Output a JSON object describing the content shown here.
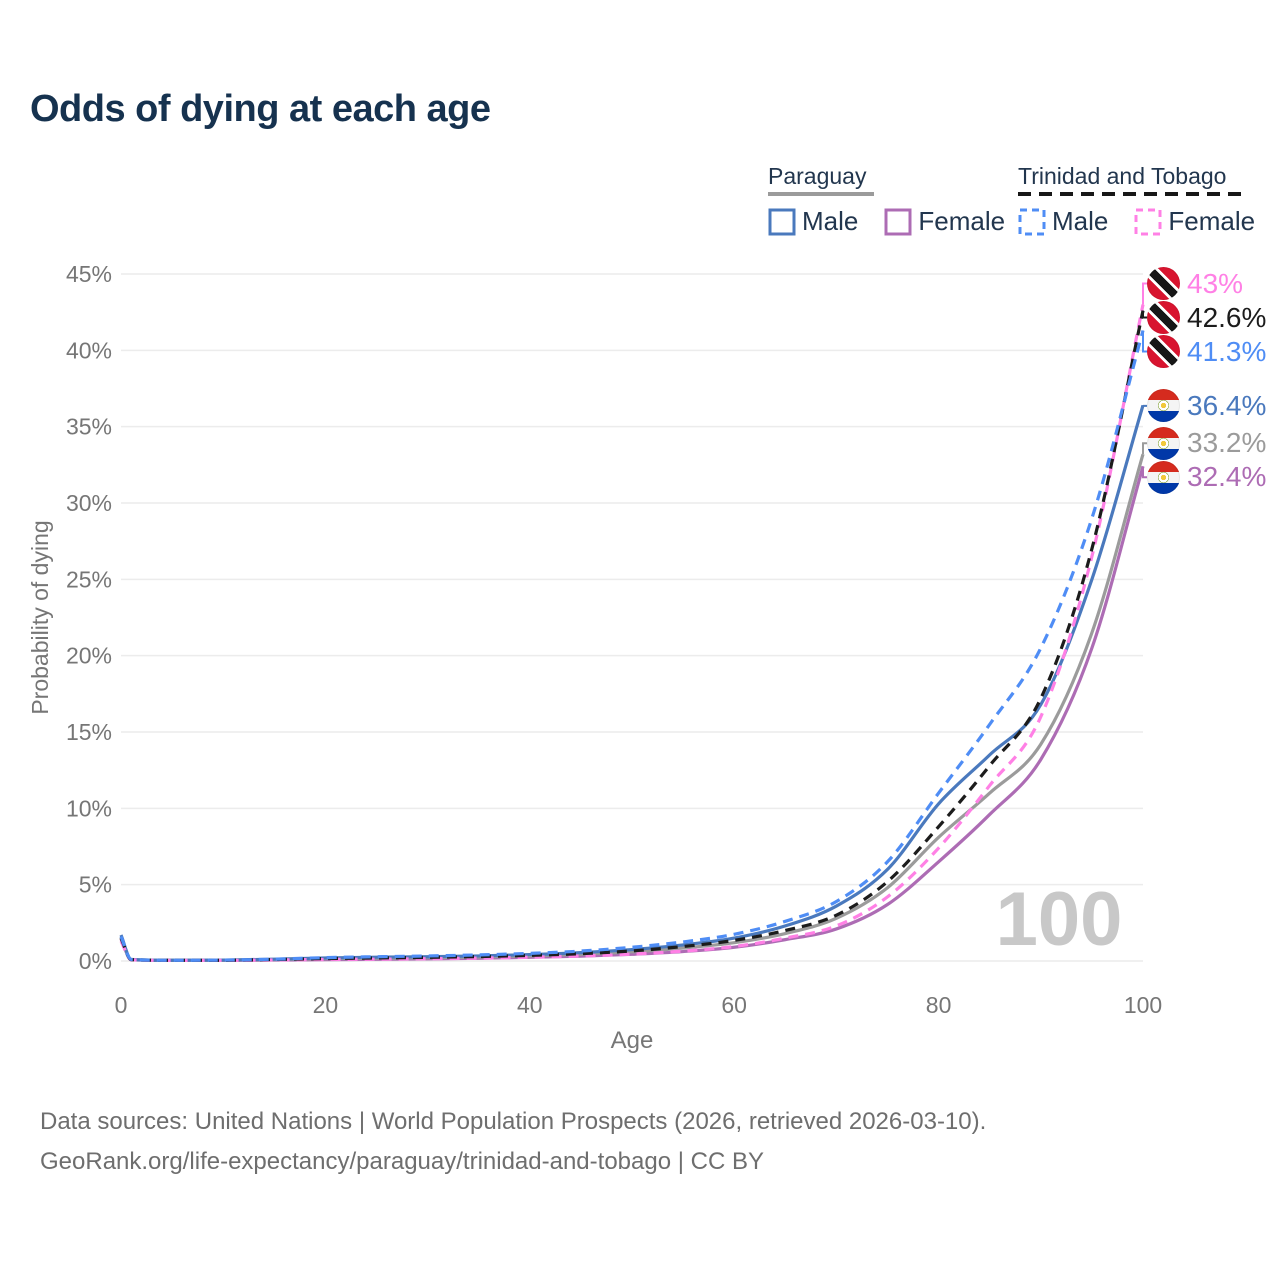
{
  "title": "Odds of dying at each age",
  "watermark": "100",
  "legend": {
    "paraguay": {
      "label": "Paraguay",
      "male": "Male",
      "female": "Female"
    },
    "trinidad": {
      "label": "Trinidad and Tobago",
      "male": "Male",
      "female": "Female"
    }
  },
  "colors": {
    "title": "#16324f",
    "axis_text": "#767676",
    "gridline": "#ececec",
    "watermark": "#c8c8c8",
    "paraguay_underline": "#9b9b9b",
    "trinidad_underline": "#171717",
    "paraguay_male": "#4a79bd",
    "paraguay_female": "#ad6cb4",
    "paraguay_both": "#9b9b9b",
    "trinidad_male": "#4f8df5",
    "trinidad_female": "#ff80e5",
    "trinidad_both": "#1c1c1c"
  },
  "chart_data": {
    "type": "line",
    "title": "Odds of dying at each age",
    "xlabel": "Age",
    "ylabel": "Probability of dying",
    "xlim": [
      0,
      100
    ],
    "ylim": [
      0,
      45
    ],
    "x_ticks": [
      0,
      20,
      40,
      60,
      80,
      100
    ],
    "y_ticks_percent": [
      0,
      5,
      10,
      15,
      20,
      25,
      30,
      35,
      40,
      45
    ],
    "grid": "horizontal-only",
    "legend_position": "top-right",
    "x": [
      0,
      1,
      5,
      10,
      15,
      20,
      25,
      30,
      35,
      40,
      45,
      50,
      55,
      60,
      65,
      70,
      75,
      80,
      85,
      90,
      95,
      100
    ],
    "series": [
      {
        "name": "Paraguay Female",
        "country": "py",
        "sex": "female",
        "dash": false,
        "color_key": "paraguay_female",
        "end_label": "32.4%",
        "values": [
          1.45,
          0.08,
          0.04,
          0.04,
          0.06,
          0.09,
          0.11,
          0.14,
          0.18,
          0.24,
          0.32,
          0.44,
          0.62,
          0.9,
          1.4,
          2.1,
          3.7,
          6.5,
          9.6,
          13.2,
          20.5,
          32.4
        ]
      },
      {
        "name": "Paraguay",
        "country": "py",
        "sex": "both",
        "dash": false,
        "color_key": "paraguay_both",
        "end_label": "33.2%",
        "values": [
          1.55,
          0.09,
          0.05,
          0.05,
          0.1,
          0.15,
          0.18,
          0.21,
          0.26,
          0.33,
          0.44,
          0.6,
          0.85,
          1.2,
          1.8,
          2.8,
          4.8,
          8.1,
          11.0,
          14.2,
          21.5,
          33.2
        ]
      },
      {
        "name": "Paraguay Male",
        "country": "py",
        "sex": "male",
        "dash": false,
        "color_key": "paraguay_male",
        "end_label": "36.4%",
        "values": [
          1.7,
          0.1,
          0.05,
          0.06,
          0.12,
          0.2,
          0.25,
          0.28,
          0.33,
          0.42,
          0.55,
          0.75,
          1.05,
          1.5,
          2.3,
          3.6,
          6.0,
          10.3,
          13.5,
          16.8,
          25.0,
          36.4
        ]
      },
      {
        "name": "Trinidad and Tobago Female",
        "country": "tt",
        "sex": "female",
        "dash": true,
        "color_key": "trinidad_female",
        "end_label": "43%",
        "values": [
          1.3,
          0.08,
          0.04,
          0.04,
          0.07,
          0.1,
          0.12,
          0.15,
          0.19,
          0.25,
          0.33,
          0.45,
          0.65,
          0.95,
          1.5,
          2.3,
          4.2,
          7.4,
          11.5,
          16.0,
          26.5,
          43.0
        ]
      },
      {
        "name": "Trinidad and Tobago",
        "country": "tt",
        "sex": "both",
        "dash": true,
        "color_key": "trinidad_both",
        "end_label": "42.6%",
        "values": [
          1.5,
          0.09,
          0.05,
          0.05,
          0.1,
          0.16,
          0.2,
          0.24,
          0.29,
          0.37,
          0.48,
          0.66,
          0.95,
          1.35,
          2.0,
          3.0,
          5.2,
          8.8,
          12.8,
          17.2,
          27.0,
          42.6
        ]
      },
      {
        "name": "Trinidad and Tobago Male",
        "country": "tt",
        "sex": "male",
        "dash": true,
        "color_key": "trinidad_male",
        "end_label": "41.3%",
        "values": [
          1.6,
          0.1,
          0.05,
          0.06,
          0.12,
          0.22,
          0.28,
          0.33,
          0.4,
          0.5,
          0.65,
          0.9,
          1.25,
          1.75,
          2.6,
          3.9,
          6.5,
          11.0,
          15.5,
          20.5,
          29.0,
          41.3
        ]
      }
    ]
  },
  "footer": {
    "line1": "Data sources: United Nations | World Population Prospects (2026, retrieved 2026-03-10).",
    "line2": "GeoRank.org/life-expectancy/paraguay/trinidad-and-tobago | CC BY"
  }
}
